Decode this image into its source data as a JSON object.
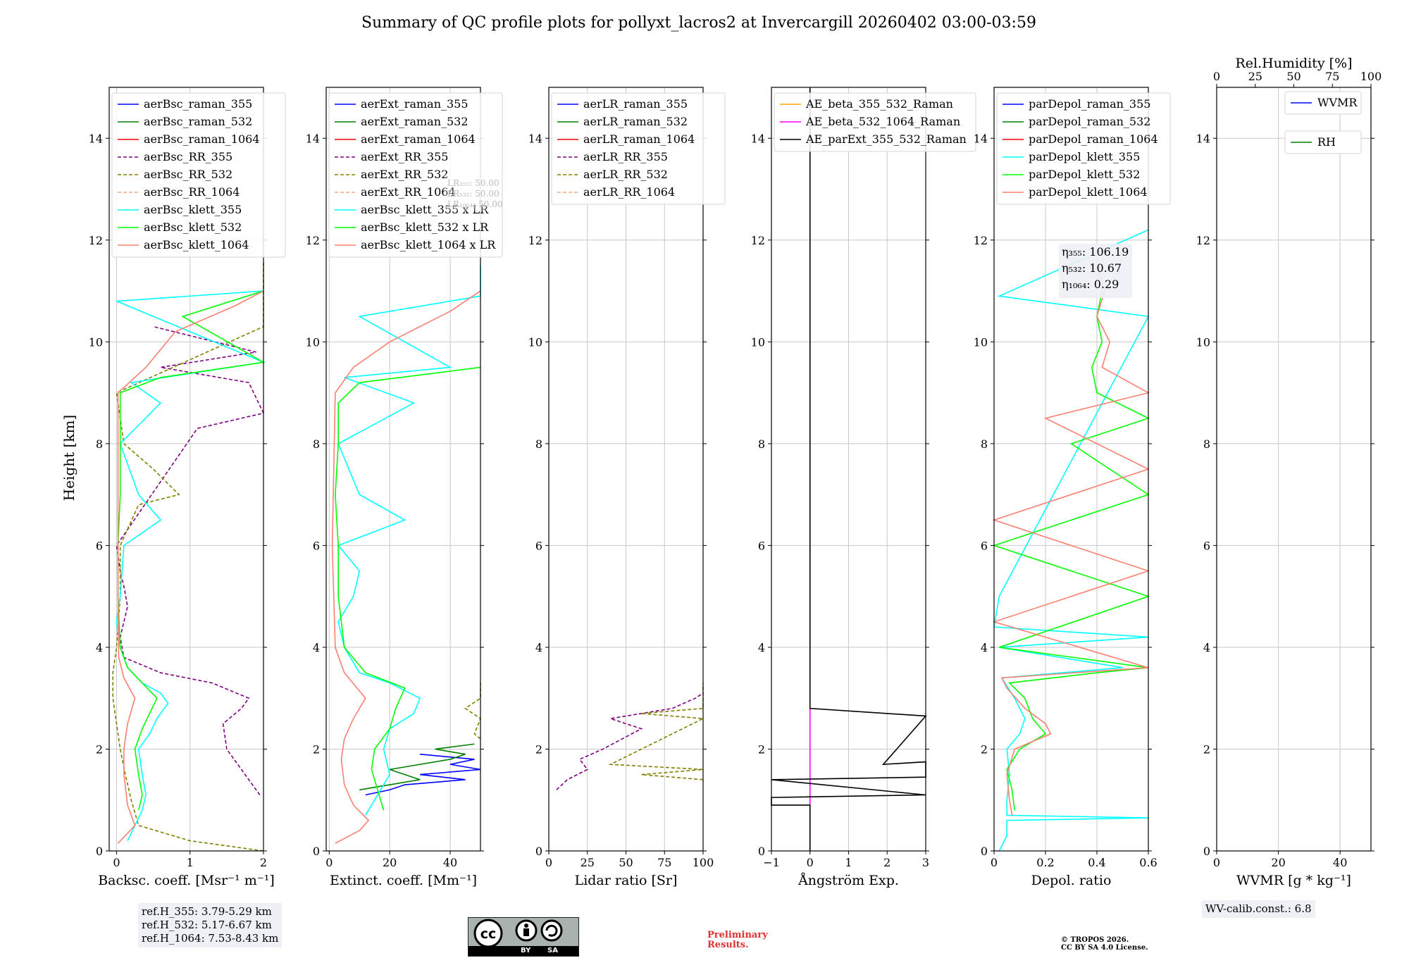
{
  "title": "Summary of QC profile plots for pollyxt_lacros2 at Invercargill 20260402 03:00-03:59",
  "ylabel": "Height [km]",
  "colors": {
    "raman355": "#0000ff",
    "raman532": "#008000",
    "raman1064": "#ff0000",
    "rr355": "#800080",
    "rr532": "#808000",
    "rr1064": "#f4a582",
    "klett355": "#00ffff",
    "klett532": "#00ff00",
    "klett1064": "#fa8072",
    "ae_b355532": "#ffa500",
    "ae_b5321064": "#ff00ff",
    "ae_ext": "#000000",
    "wvmr": "#0000ff",
    "rh": "#008000"
  },
  "chart_data": [
    {
      "type": "line",
      "id": "bsc",
      "xlabel": "Backsc. coeff. [Msr⁻¹ m⁻¹]",
      "xlim": [
        -0.1,
        2.0
      ],
      "xticks": [
        0,
        1,
        2
      ],
      "ylim": [
        0,
        15
      ],
      "yticks": [
        0,
        2,
        4,
        6,
        8,
        10,
        12,
        14
      ],
      "legend": "top-left",
      "series": [
        {
          "name": "aerBsc_raman_355",
          "color": "raman355",
          "dash": false,
          "h": [],
          "v": []
        },
        {
          "name": "aerBsc_raman_532",
          "color": "raman532",
          "dash": false,
          "h": [],
          "v": []
        },
        {
          "name": "aerBsc_raman_1064",
          "color": "raman1064",
          "dash": false,
          "h": [],
          "v": []
        },
        {
          "name": "aerBsc_RR_355",
          "color": "rr355",
          "dash": true,
          "h": [
            1.1,
            1.6,
            2.0,
            2.5,
            2.8,
            3.0,
            3.3,
            3.5,
            3.8,
            4.2,
            4.8,
            5.2,
            5.5,
            6.0,
            8.3,
            8.6,
            9.2,
            9.5,
            9.8,
            10.3
          ],
          "v": [
            1.95,
            1.7,
            1.5,
            1.45,
            1.7,
            1.8,
            1.3,
            0.6,
            0.1,
            0.05,
            0.15,
            0.1,
            0.05,
            0.0,
            1.1,
            2.0,
            1.8,
            0.6,
            1.9,
            0.5
          ]
        },
        {
          "name": "aerBsc_RR_532",
          "color": "rr532",
          "dash": true,
          "h": [
            0.0,
            0.2,
            0.5,
            1.0,
            1.5,
            2.0,
            2.5,
            3.0,
            3.5,
            4.0,
            5.0,
            6.0,
            6.8,
            7.0,
            7.5,
            8.0,
            9.0,
            10.3,
            11.6
          ],
          "v": [
            2.0,
            1.0,
            0.3,
            0.2,
            0.12,
            0.05,
            0.0,
            -0.05,
            -0.05,
            0.0,
            0.05,
            0.05,
            0.3,
            0.85,
            0.5,
            0.1,
            0.0,
            2.0,
            2.0
          ]
        },
        {
          "name": "aerBsc_RR_1064",
          "color": "rr1064",
          "dash": true,
          "h": [],
          "v": []
        },
        {
          "name": "aerBsc_klett_355",
          "color": "klett355",
          "dash": false,
          "h": [
            0.2,
            0.5,
            0.8,
            1.1,
            1.5,
            2.0,
            2.3,
            2.6,
            2.9,
            3.1,
            3.3,
            3.6,
            4.0,
            4.5,
            5.0,
            6.0,
            6.5,
            7.0,
            8.0,
            8.8,
            9.2,
            9.6,
            10.8,
            11.0
          ],
          "v": [
            0.15,
            0.25,
            0.35,
            0.4,
            0.35,
            0.3,
            0.45,
            0.55,
            0.7,
            0.6,
            0.35,
            0.15,
            0.05,
            0.0,
            0.05,
            0.1,
            0.6,
            0.3,
            0.05,
            0.6,
            0.2,
            2.0,
            0.0,
            2.0
          ]
        },
        {
          "name": "aerBsc_klett_532",
          "color": "klett532",
          "dash": false,
          "h": [
            0.8,
            1.1,
            1.5,
            2.0,
            2.4,
            2.7,
            3.0,
            3.3,
            3.6,
            4.0,
            5.0,
            6.0,
            7.0,
            8.0,
            9.0,
            9.3,
            9.6,
            10.5,
            11.0
          ],
          "v": [
            0.3,
            0.35,
            0.3,
            0.25,
            0.35,
            0.45,
            0.55,
            0.35,
            0.15,
            0.05,
            0.02,
            0.02,
            0.05,
            0.05,
            0.05,
            0.6,
            2.0,
            0.9,
            2.0
          ]
        },
        {
          "name": "aerBsc_klett_1064",
          "color": "klett1064",
          "dash": false,
          "h": [
            0.15,
            0.5,
            0.9,
            1.5,
            2.0,
            2.5,
            3.0,
            3.4,
            3.8,
            5.0,
            7.0,
            9.0,
            9.5,
            10.2,
            10.7,
            11.0
          ],
          "v": [
            0.02,
            0.25,
            0.15,
            0.1,
            0.1,
            0.15,
            0.25,
            0.1,
            0.03,
            0.02,
            0.02,
            0.02,
            0.4,
            0.8,
            1.6,
            2.0
          ]
        }
      ],
      "notes": []
    },
    {
      "type": "line",
      "id": "ext",
      "xlabel": "Extinct. coeff. [Mm⁻¹]",
      "xlim": [
        -1,
        50
      ],
      "xticks": [
        0,
        20,
        40
      ],
      "ylim": [
        0,
        15
      ],
      "yticks": [
        0,
        2,
        4,
        6,
        8,
        10,
        12,
        14
      ],
      "legend": "top-left",
      "series": [
        {
          "name": "aerExt_raman_355",
          "color": "raman355",
          "dash": false,
          "h": [
            1.1,
            1.2,
            1.3,
            1.4,
            1.5,
            1.6,
            1.7,
            1.8,
            1.9
          ],
          "v": [
            12,
            20,
            25,
            45,
            30,
            50,
            40,
            48,
            30
          ]
        },
        {
          "name": "aerExt_raman_532",
          "color": "raman532",
          "dash": false,
          "h": [
            1.2,
            1.4,
            1.6,
            1.8,
            1.9,
            2.0,
            2.1
          ],
          "v": [
            10,
            30,
            20,
            40,
            45,
            35,
            48
          ]
        },
        {
          "name": "aerExt_raman_1064",
          "color": "raman1064",
          "dash": false,
          "h": [],
          "v": []
        },
        {
          "name": "aerExt_RR_355",
          "color": "rr355",
          "dash": true,
          "h": [],
          "v": []
        },
        {
          "name": "aerExt_RR_532",
          "color": "rr532",
          "dash": true,
          "h": [
            2.2,
            2.3,
            2.6,
            2.8,
            3.0,
            3.2,
            3.3
          ],
          "v": [
            50,
            48,
            50,
            45,
            50,
            50,
            50
          ]
        },
        {
          "name": "aerExt_RR_1064",
          "color": "rr1064",
          "dash": true,
          "h": [],
          "v": []
        },
        {
          "name": "aerBsc_klett_355 x LR",
          "color": "klett355",
          "dash": false,
          "h": [
            0.7,
            1.0,
            1.5,
            2.0,
            2.4,
            2.7,
            3.0,
            3.3,
            3.5,
            4.0,
            4.5,
            5.0,
            5.5,
            6.0,
            6.5,
            7.0,
            8.0,
            8.8,
            9.3,
            9.5,
            10.5,
            10.9,
            11.5
          ],
          "v": [
            12,
            15,
            20,
            18,
            20,
            28,
            30,
            20,
            10,
            5,
            3,
            8,
            10,
            3,
            25,
            10,
            3,
            28,
            5,
            40,
            10,
            50,
            50
          ]
        },
        {
          "name": "aerBsc_klett_532 x LR",
          "color": "klett532",
          "dash": false,
          "h": [
            0.8,
            1.2,
            1.6,
            2.0,
            2.4,
            2.8,
            3.2,
            3.5,
            4.0,
            5.0,
            6.0,
            7.0,
            8.0,
            8.8,
            9.2,
            9.5
          ],
          "v": [
            18,
            16,
            14,
            15,
            20,
            22,
            25,
            12,
            5,
            3,
            3,
            2,
            3,
            3,
            10,
            50
          ]
        },
        {
          "name": "aerBsc_klett_1064 x LR",
          "color": "klett1064",
          "dash": false,
          "h": [
            0.15,
            0.4,
            0.6,
            0.9,
            1.3,
            1.8,
            2.2,
            2.6,
            3.0,
            3.5,
            4.0,
            6.0,
            9.0,
            9.5,
            10.0,
            10.6,
            11.0
          ],
          "v": [
            2,
            10,
            13,
            8,
            5,
            4,
            5,
            8,
            12,
            5,
            2,
            1,
            2,
            8,
            20,
            40,
            50
          ]
        }
      ],
      "notes": [
        {
          "text": "LR₃₅₅: 50.00"
        },
        {
          "text": "LR₅₃₂: 50.00"
        },
        {
          "text": "LR₁₀₆₄: 50.00"
        }
      ]
    },
    {
      "type": "line",
      "id": "lr",
      "xlabel": "Lidar ratio [Sr]",
      "xlim": [
        0,
        100
      ],
      "xticks": [
        0,
        25,
        50,
        75,
        100
      ],
      "ylim": [
        0,
        15
      ],
      "yticks": [
        0,
        2,
        4,
        6,
        8,
        10,
        12,
        14
      ],
      "legend": "top-left",
      "series": [
        {
          "name": "aerLR_raman_355",
          "color": "raman355",
          "dash": false,
          "h": [],
          "v": []
        },
        {
          "name": "aerLR_raman_532",
          "color": "raman532",
          "dash": false,
          "h": [],
          "v": []
        },
        {
          "name": "aerLR_raman_1064",
          "color": "raman1064",
          "dash": false,
          "h": [],
          "v": []
        },
        {
          "name": "aerLR_RR_355",
          "color": "rr355",
          "dash": true,
          "h": [
            1.2,
            1.4,
            1.6,
            1.8,
            2.0,
            2.4,
            2.6,
            2.8,
            3.0,
            3.1
          ],
          "v": [
            5,
            12,
            25,
            20,
            35,
            60,
            40,
            80,
            95,
            100
          ]
        },
        {
          "name": "aerLR_RR_532",
          "color": "rr532",
          "dash": true,
          "h": [
            1.4,
            1.5,
            1.6,
            1.7,
            2.6,
            2.7,
            2.8,
            3.3
          ],
          "v": [
            100,
            60,
            100,
            40,
            100,
            60,
            100,
            100
          ]
        },
        {
          "name": "aerLR_RR_1064",
          "color": "rr1064",
          "dash": true,
          "h": [],
          "v": []
        }
      ],
      "notes": []
    },
    {
      "type": "line",
      "id": "ae",
      "xlabel": "Ångström Exp.",
      "xlim": [
        -1,
        3
      ],
      "xticks": [
        -1,
        0,
        1,
        2,
        3
      ],
      "ylim": [
        0,
        15
      ],
      "yticks": [
        0,
        2,
        4,
        6,
        8,
        10,
        12,
        14
      ],
      "legend": "top-left",
      "series": [
        {
          "name": "AE_beta_355_532_Raman",
          "color": "ae_b355532",
          "dash": false,
          "h": [],
          "v": []
        },
        {
          "name": "AE_beta_532_1064_Raman",
          "color": "ae_b5321064",
          "dash": false,
          "h": [
            0.0,
            2.8
          ],
          "v": [
            0.0,
            0.0
          ]
        },
        {
          "name": "AE_parExt_355_532_Raman",
          "color": "ae_ext",
          "dash": false,
          "h": [
            0.0,
            0.9,
            0.9,
            1.05,
            1.1,
            1.4,
            1.45,
            1.75,
            1.7,
            2.65,
            2.8,
            15.0
          ],
          "v": [
            0.0,
            0.0,
            -1,
            -1,
            3,
            -1,
            3,
            3,
            1.9,
            3,
            0.0,
            0.0
          ]
        }
      ],
      "notes": []
    },
    {
      "type": "line",
      "id": "depol",
      "xlabel": "Depol. ratio",
      "xlim": [
        0,
        0.6
      ],
      "xticks": [
        0.0,
        0.2,
        0.4,
        0.6
      ],
      "ylim": [
        0,
        15
      ],
      "yticks": [
        0,
        2,
        4,
        6,
        8,
        10,
        12,
        14
      ],
      "legend": "top-left",
      "series": [
        {
          "name": "parDepol_raman_355",
          "color": "raman355",
          "dash": false,
          "h": [],
          "v": []
        },
        {
          "name": "parDepol_raman_532",
          "color": "raman532",
          "dash": false,
          "h": [],
          "v": []
        },
        {
          "name": "parDepol_raman_1064",
          "color": "raman1064",
          "dash": false,
          "h": [],
          "v": []
        },
        {
          "name": "parDepol_klett_355",
          "color": "klett355",
          "dash": false,
          "h": [
            0.0,
            0.3,
            0.6,
            0.65,
            0.7,
            1.0,
            1.5,
            2.0,
            2.3,
            2.6,
            3.0,
            3.4,
            3.6,
            4.0,
            4.2,
            4.4,
            5.0,
            10.5,
            10.9,
            12.2
          ],
          "v": [
            0.02,
            0.05,
            0.05,
            0.6,
            0.05,
            0.05,
            0.06,
            0.05,
            0.1,
            0.12,
            0.08,
            0.03,
            0.5,
            0.02,
            0.6,
            0.0,
            0.02,
            0.6,
            0.02,
            0.6
          ]
        },
        {
          "name": "parDepol_klett_532",
          "color": "klett532",
          "dash": false,
          "h": [
            0.8,
            1.2,
            1.6,
            2.0,
            2.3,
            2.6,
            3.0,
            3.3,
            3.5,
            3.6,
            4.0,
            5.0,
            6.0,
            7.0,
            8.0,
            8.5,
            9.0,
            9.5,
            10.0,
            10.5,
            11.0
          ],
          "v": [
            0.08,
            0.07,
            0.05,
            0.1,
            0.2,
            0.15,
            0.12,
            0.06,
            0.4,
            0.6,
            0.02,
            0.6,
            0.0,
            0.6,
            0.3,
            0.6,
            0.4,
            0.38,
            0.42,
            0.4,
            0.42
          ]
        },
        {
          "name": "parDepol_klett_1064",
          "color": "klett1064",
          "dash": false,
          "h": [
            0.7,
            1.0,
            1.5,
            2.0,
            2.3,
            2.5,
            2.8,
            3.2,
            3.4,
            3.6,
            4.5,
            5.5,
            6.5,
            7.5,
            8.5,
            9.0,
            9.5,
            10.0,
            10.5,
            11.0,
            11.5
          ],
          "v": [
            0.07,
            0.06,
            0.05,
            0.08,
            0.22,
            0.2,
            0.12,
            0.05,
            0.03,
            0.6,
            0.0,
            0.6,
            0.0,
            0.6,
            0.2,
            0.6,
            0.42,
            0.45,
            0.4,
            0.43,
            0.4
          ]
        }
      ],
      "notes": [
        {
          "text": "η₃₅₅: 106.19"
        },
        {
          "text": "η₅₃₂: 10.67"
        },
        {
          "text": "η₁₀₆₄: 0.29"
        }
      ]
    },
    {
      "type": "line",
      "id": "wv",
      "xlabel": "WVMR [g * kg⁻¹]",
      "x2label": "Rel.Humidity [%]",
      "xlim": [
        0,
        50
      ],
      "xticks": [
        0,
        20,
        40
      ],
      "x2lim": [
        0,
        100
      ],
      "x2ticks": [
        0,
        25,
        50,
        75,
        100
      ],
      "ylim": [
        0,
        15
      ],
      "yticks": [
        0,
        2,
        4,
        6,
        8,
        10,
        12,
        14
      ],
      "legend": "top-right",
      "series": [
        {
          "name": "WVMR",
          "color": "wvmr",
          "dash": false,
          "h": [],
          "v": []
        },
        {
          "name": "RH",
          "color": "rh",
          "dash": false,
          "h": [],
          "v": []
        }
      ],
      "notes": []
    }
  ],
  "footer": {
    "ref_lines": [
      "ref.H_355: 3.79-5.29 km",
      "ref.H_532: 5.17-6.67 km",
      "ref.H_1064: 7.53-8.43 km"
    ],
    "wv_calib": "WV-calib.const.: 6.8",
    "preliminary": [
      "Preliminary",
      "Results."
    ],
    "copyright": [
      "© TROPOS 2026.",
      "CC BY SA 4.0 License."
    ],
    "cc_badge": {
      "by": "BY",
      "sa": "SA"
    }
  }
}
